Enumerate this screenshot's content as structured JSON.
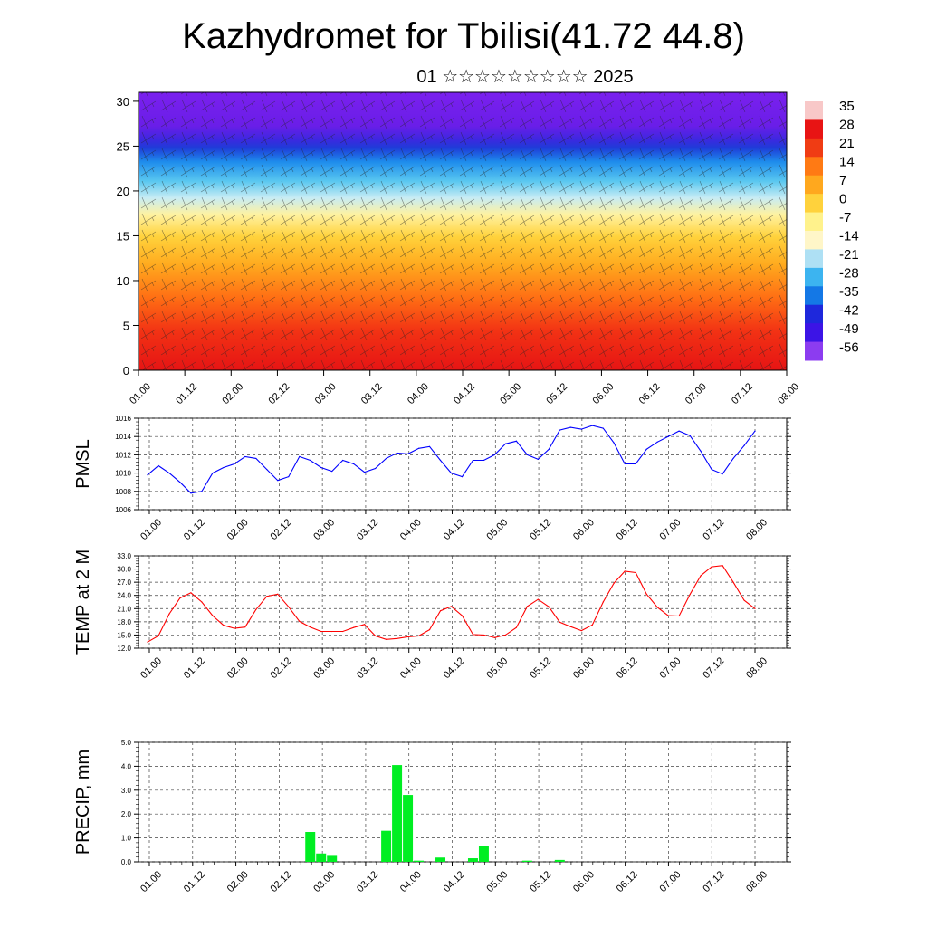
{
  "title": "Kazhydromet for Tbilisi(41.72 44.8)",
  "subtitle": "01 ☆☆☆☆☆☆☆☆☆ 2025",
  "time_ticks": [
    "01.00",
    "01.12",
    "02.00",
    "02.12",
    "03.00",
    "03.12",
    "04.00",
    "04.12",
    "05.00",
    "05.12",
    "06.00",
    "06.12",
    "07.00",
    "07.12",
    "08.00"
  ],
  "chart_data": [
    {
      "type": "heatmap",
      "title": "",
      "y_ticks": [
        0,
        5,
        10,
        15,
        20,
        25,
        30
      ],
      "ylim": [
        0,
        31
      ],
      "colorbar_labels": [
        "35",
        "28",
        "21",
        "14",
        "7",
        "0",
        "-7",
        "-14",
        "-21",
        "-28",
        "-35",
        "-42",
        "-49",
        "-56"
      ],
      "colorbar_stops": [
        "#f8c8c8",
        "#e81414",
        "#f03c14",
        "#ff7a14",
        "#ffa81e",
        "#ffd23c",
        "#fff28c",
        "#fff6c8",
        "#aee0f4",
        "#3cb4f0",
        "#1478e6",
        "#1e28dc",
        "#3c14e6",
        "#8c3cf0"
      ]
    },
    {
      "type": "line",
      "ylabel": "PMSL",
      "ylim": [
        1006,
        1016
      ],
      "y_ticks": [
        "1006",
        "1008",
        "1010",
        "1012",
        "1014",
        "1016"
      ],
      "color": "#0000ff",
      "values": [
        1009.8,
        1010.8,
        1010.0,
        1009.0,
        1007.8,
        1008.0,
        1010.0,
        1010.6,
        1011.0,
        1011.8,
        1011.6,
        1010.4,
        1009.2,
        1009.6,
        1011.8,
        1011.4,
        1010.6,
        1010.2,
        1011.4,
        1011.0,
        1010.1,
        1010.5,
        1011.6,
        1012.2,
        1012.1,
        1012.7,
        1012.9,
        1011.4,
        1010.0,
        1009.6,
        1011.4,
        1011.4,
        1012.0,
        1013.2,
        1013.5,
        1012.0,
        1011.5,
        1012.6,
        1014.7,
        1015.0,
        1014.8,
        1015.2,
        1014.9,
        1013.3,
        1011.0,
        1011.0,
        1012.6,
        1013.4,
        1014.0,
        1014.6,
        1014.1,
        1012.4,
        1010.4,
        1009.9,
        1011.6,
        1013.0,
        1014.6
      ]
    },
    {
      "type": "line",
      "ylabel": "TEMP at 2 M",
      "ylim": [
        12,
        33
      ],
      "y_ticks": [
        "12.0",
        "15.0",
        "18.0",
        "21.0",
        "24.0",
        "27.0",
        "30.0",
        "33.0"
      ],
      "color": "#ff0000",
      "values": [
        13.4,
        14.8,
        19.8,
        23.4,
        24.6,
        22.5,
        19.4,
        17.2,
        16.5,
        16.8,
        20.8,
        23.8,
        24.3,
        21.4,
        18.1,
        16.8,
        15.8,
        15.8,
        15.8,
        16.7,
        17.4,
        14.8,
        14.0,
        14.2,
        14.6,
        14.8,
        16.2,
        20.5,
        21.5,
        19.4,
        15.1,
        15.0,
        14.4,
        15.0,
        16.7,
        21.5,
        23.1,
        21.4,
        17.9,
        16.9,
        16.0,
        17.3,
        22.5,
        26.8,
        29.5,
        29.2,
        24.3,
        21.3,
        19.4,
        19.3,
        24.2,
        28.5,
        30.5,
        30.8,
        27.0,
        22.9,
        21.0
      ]
    },
    {
      "type": "bar",
      "ylabel": "PRECIP, mm",
      "ylim": [
        0,
        5
      ],
      "y_ticks": [
        "0.0",
        "1.0",
        "2.0",
        "3.0",
        "4.0",
        "5.0"
      ],
      "color": "#00ee22",
      "values": [
        0,
        0,
        0,
        0,
        0,
        0,
        0,
        0,
        0,
        0,
        0,
        0,
        0,
        0,
        0,
        1.25,
        0.35,
        0.25,
        0,
        0,
        0,
        0,
        1.3,
        4.05,
        2.8,
        0.05,
        0,
        0.18,
        0,
        0,
        0.15,
        0.65,
        0,
        0,
        0,
        0.05,
        0,
        0,
        0.08,
        0,
        0,
        0,
        0,
        0,
        0,
        0,
        0,
        0,
        0,
        0,
        0,
        0,
        0,
        0,
        0,
        0,
        0
      ]
    }
  ]
}
